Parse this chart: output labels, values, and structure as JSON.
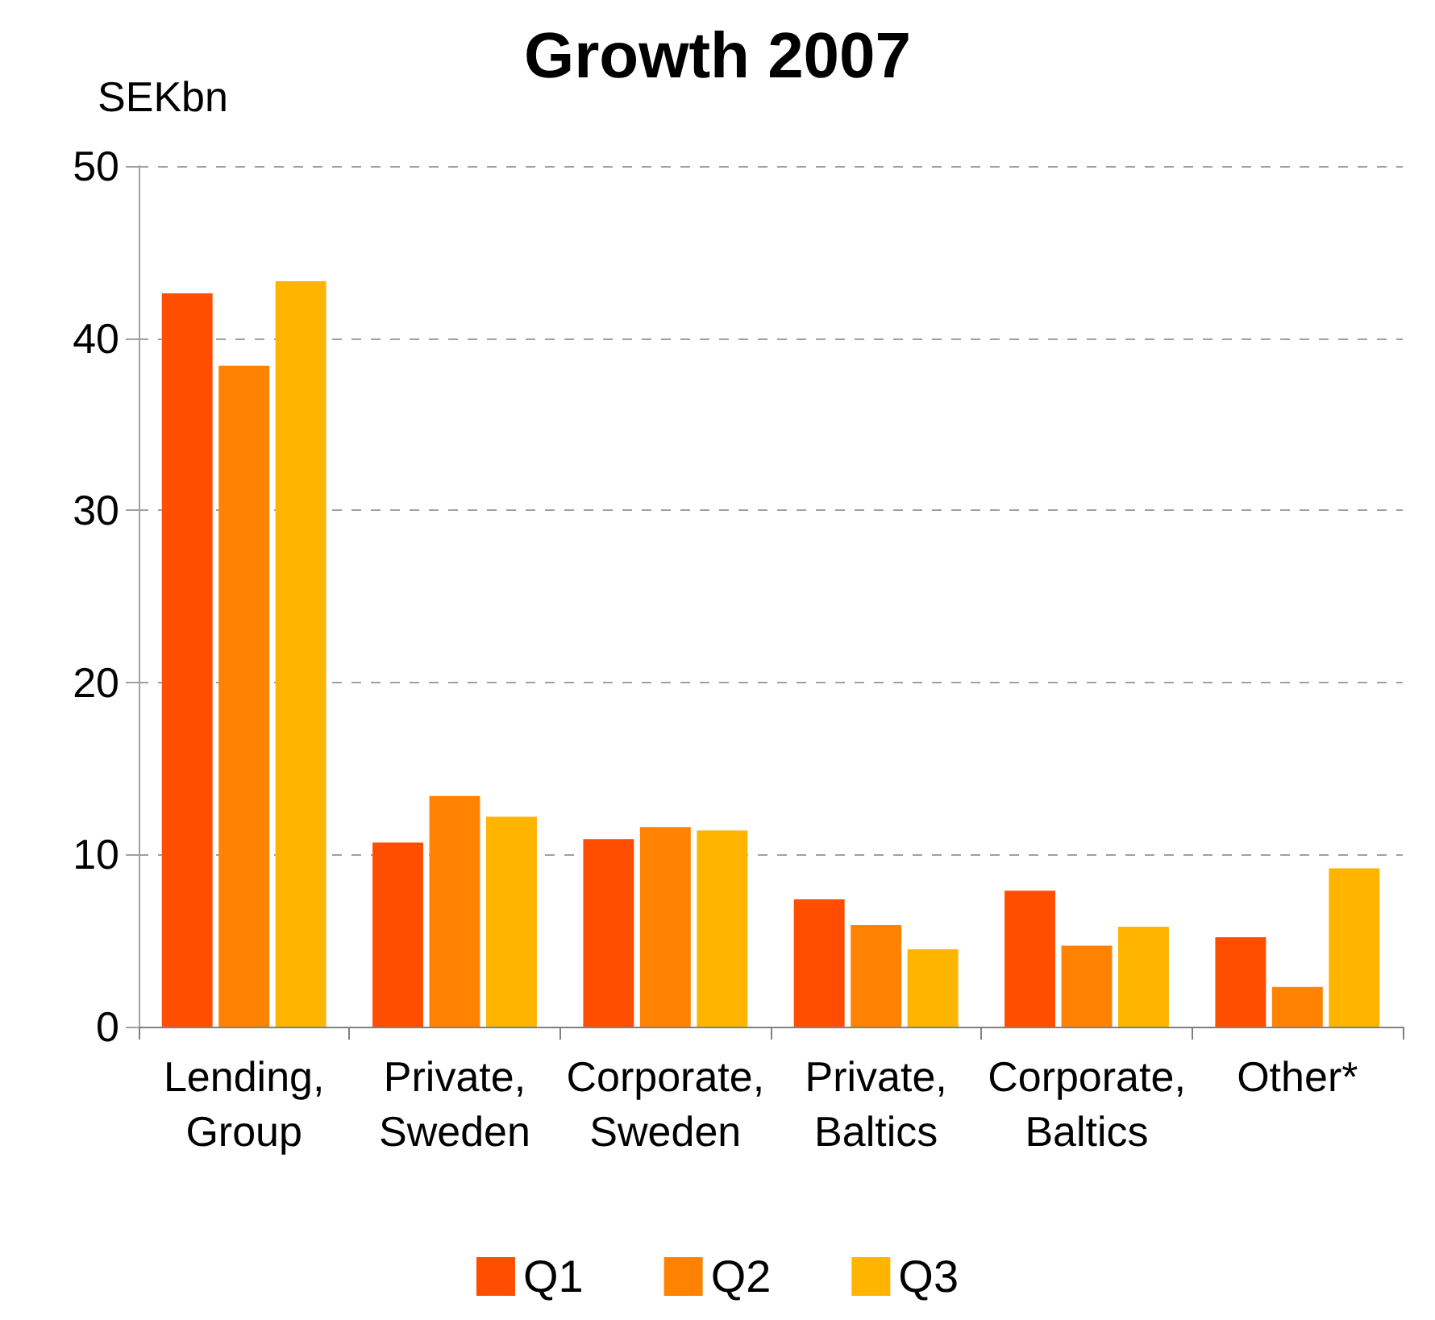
{
  "chart_data": {
    "type": "bar",
    "title": "Growth 2007",
    "ylabel": "SEKbn",
    "categories": [
      "Lending,\nGroup",
      "Private,\nSweden",
      "Corporate,\nSweden",
      "Private,\nBaltics",
      "Corporate,\nBaltics",
      "Other*"
    ],
    "series": [
      {
        "name": "Q1",
        "color": "#ff4e00",
        "values": [
          42.6,
          10.7,
          10.9,
          7.4,
          7.9,
          5.2
        ]
      },
      {
        "name": "Q2",
        "color": "#ff8300",
        "values": [
          38.4,
          13.4,
          11.6,
          5.9,
          4.7,
          2.3
        ]
      },
      {
        "name": "Q3",
        "color": "#ffb400",
        "values": [
          43.3,
          12.2,
          11.4,
          4.5,
          5.8,
          9.2
        ]
      }
    ],
    "ylim": [
      0,
      50
    ],
    "yticks": [
      0,
      10,
      20,
      30,
      40,
      50
    ],
    "grid": "y",
    "legend": "bottom"
  }
}
